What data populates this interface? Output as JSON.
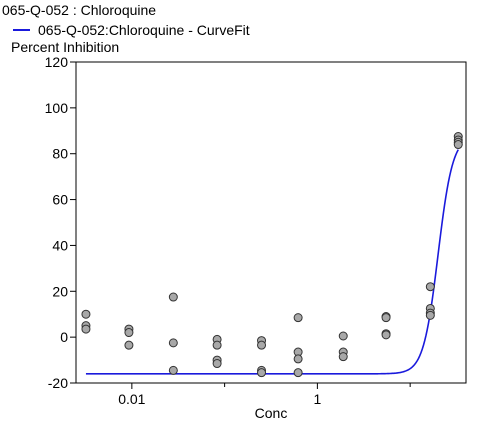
{
  "chart_data": {
    "type": "scatter",
    "title": "065-Q-052  : Chloroquine",
    "legend": {
      "placement": "top-left",
      "entries": [
        {
          "label": "065-Q-052:Chloroquine - CurveFit",
          "color": "#1a1adc"
        }
      ]
    },
    "ylabel": "Percent Inhibition",
    "xlabel": "Conc",
    "xscale": "log",
    "xlim": [
      0.0025,
      40
    ],
    "ylim": [
      -20,
      120
    ],
    "xticks": [
      {
        "value": 0.01,
        "label": "0.01"
      },
      {
        "value": 1,
        "label": "1"
      }
    ],
    "yticks": [
      {
        "value": 120,
        "label": "120"
      },
      {
        "value": 100,
        "label": "100"
      },
      {
        "value": 80,
        "label": "80"
      },
      {
        "value": 60,
        "label": "60"
      },
      {
        "value": 40,
        "label": "40"
      },
      {
        "value": 20,
        "label": "20"
      },
      {
        "value": 0,
        "label": "0"
      },
      {
        "value": -20,
        "label": "-20"
      }
    ],
    "grid": false,
    "points": [
      {
        "x": 0.0032,
        "y": 10
      },
      {
        "x": 0.0032,
        "y": 5
      },
      {
        "x": 0.0032,
        "y": 3.5
      },
      {
        "x": 0.0093,
        "y": 3.5
      },
      {
        "x": 0.0093,
        "y": 2
      },
      {
        "x": 0.0093,
        "y": -3.5
      },
      {
        "x": 0.028,
        "y": 17.5
      },
      {
        "x": 0.028,
        "y": -2.5
      },
      {
        "x": 0.028,
        "y": -14.5
      },
      {
        "x": 0.083,
        "y": -1
      },
      {
        "x": 0.083,
        "y": -3.5
      },
      {
        "x": 0.083,
        "y": -10
      },
      {
        "x": 0.083,
        "y": -11.5
      },
      {
        "x": 0.25,
        "y": -1.5
      },
      {
        "x": 0.25,
        "y": -3.5
      },
      {
        "x": 0.25,
        "y": -14.5
      },
      {
        "x": 0.25,
        "y": -15.5
      },
      {
        "x": 0.62,
        "y": 8.5
      },
      {
        "x": 0.62,
        "y": -6.5
      },
      {
        "x": 0.62,
        "y": -9.5
      },
      {
        "x": 0.62,
        "y": -15.5
      },
      {
        "x": 1.9,
        "y": 0.5
      },
      {
        "x": 1.9,
        "y": -6.5
      },
      {
        "x": 1.9,
        "y": -8.5
      },
      {
        "x": 5.5,
        "y": 9
      },
      {
        "x": 5.5,
        "y": 8.5
      },
      {
        "x": 5.5,
        "y": 1.5
      },
      {
        "x": 5.5,
        "y": 1
      },
      {
        "x": 16.5,
        "y": 22
      },
      {
        "x": 16.5,
        "y": 12.5
      },
      {
        "x": 16.5,
        "y": 10.5
      },
      {
        "x": 16.5,
        "y": 9.5
      },
      {
        "x": 33,
        "y": 87.5
      },
      {
        "x": 33,
        "y": 86
      },
      {
        "x": 33,
        "y": 85
      },
      {
        "x": 33,
        "y": 84
      }
    ],
    "fit": {
      "model": "4PL",
      "bottom": -16,
      "top": 88,
      "ec50": 20,
      "hill": 5.5,
      "xrange": [
        0.0032,
        33
      ],
      "color": "#1a1adc"
    }
  }
}
